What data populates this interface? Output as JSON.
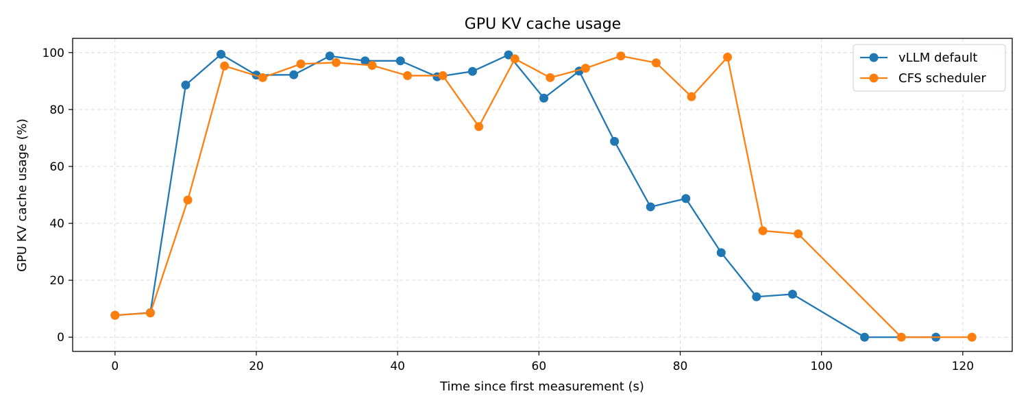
{
  "chart_data": {
    "type": "line",
    "title": "GPU KV cache usage",
    "xlabel": "Time since first measurement (s)",
    "ylabel": "GPU KV cache usage (%)",
    "xlim": [
      -6,
      127
    ],
    "ylim": [
      -5,
      105
    ],
    "xticks": [
      0,
      20,
      40,
      60,
      80,
      100,
      120
    ],
    "yticks": [
      0,
      20,
      40,
      60,
      80,
      100
    ],
    "grid": true,
    "legend_position": "top-right",
    "series": [
      {
        "name": "vLLM default",
        "color": "#1f77b4",
        "x": [
          0,
          5,
          10,
          15,
          20,
          25.3,
          30.4,
          35.4,
          40.4,
          45.6,
          50.6,
          55.7,
          60.7,
          65.7,
          70.7,
          75.8,
          80.8,
          85.8,
          90.8,
          95.9,
          106.1,
          116.2
        ],
        "y": [
          7.7,
          8.6,
          88.6,
          99.4,
          92.1,
          92.2,
          98.8,
          97.1,
          97.1,
          91.5,
          93.4,
          99.2,
          84.0,
          93.5,
          68.8,
          45.8,
          48.7,
          29.7,
          14.2,
          15.1,
          0,
          0
        ]
      },
      {
        "name": "CFS scheduler",
        "color": "#ff7f0e",
        "x": [
          0,
          5,
          10.3,
          15.5,
          20.9,
          26.3,
          31.3,
          36.4,
          41.4,
          46.4,
          51.5,
          56.6,
          61.6,
          66.6,
          71.6,
          76.6,
          81.6,
          86.7,
          91.7,
          96.7,
          111.3,
          121.3
        ],
        "y": [
          7.7,
          8.5,
          48.2,
          95.3,
          91.2,
          96.0,
          96.5,
          95.5,
          91.9,
          91.9,
          74.0,
          97.8,
          91.2,
          94.5,
          98.8,
          96.4,
          84.5,
          98.4,
          37.4,
          36.3,
          0,
          0
        ]
      }
    ]
  }
}
